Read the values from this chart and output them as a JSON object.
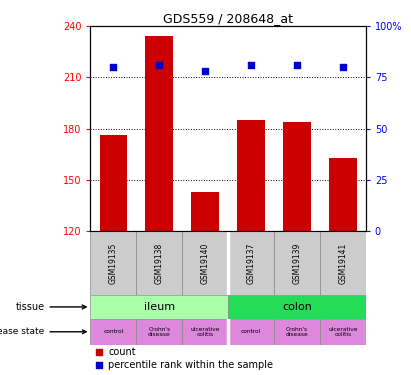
{
  "title": "GDS559 / 208648_at",
  "samples": [
    "GSM19135",
    "GSM19138",
    "GSM19140",
    "GSM19137",
    "GSM19139",
    "GSM19141"
  ],
  "counts": [
    176,
    234,
    143,
    185,
    184,
    163
  ],
  "percentiles": [
    80,
    81,
    78,
    81,
    81,
    80
  ],
  "ylim_left": [
    120,
    240
  ],
  "yticks_left": [
    120,
    150,
    180,
    210,
    240
  ],
  "ylim_right": [
    0,
    100
  ],
  "yticks_right": [
    0,
    25,
    50,
    75,
    100
  ],
  "bar_color": "#cc0000",
  "dot_color": "#0000cc",
  "tissue_ileum_color": "#aaffaa",
  "tissue_colon_color": "#22dd55",
  "disease_control_color": "#dd88dd",
  "disease_crohns_color": "#cc77cc",
  "disease_ulcerative_color": "#bb66bb",
  "sample_bg_color": "#cccccc",
  "tissue_label": "tissue",
  "disease_label": "disease state",
  "legend_count_label": "count",
  "legend_pct_label": "percentile rank within the sample",
  "dotted_lines": [
    150,
    180,
    210
  ],
  "disease_row": [
    "control",
    "Crohn's\ndisease",
    "ulcerative\ncolitis",
    "control",
    "Crohn's\ndisease",
    "ulcerative\ncolitis"
  ]
}
